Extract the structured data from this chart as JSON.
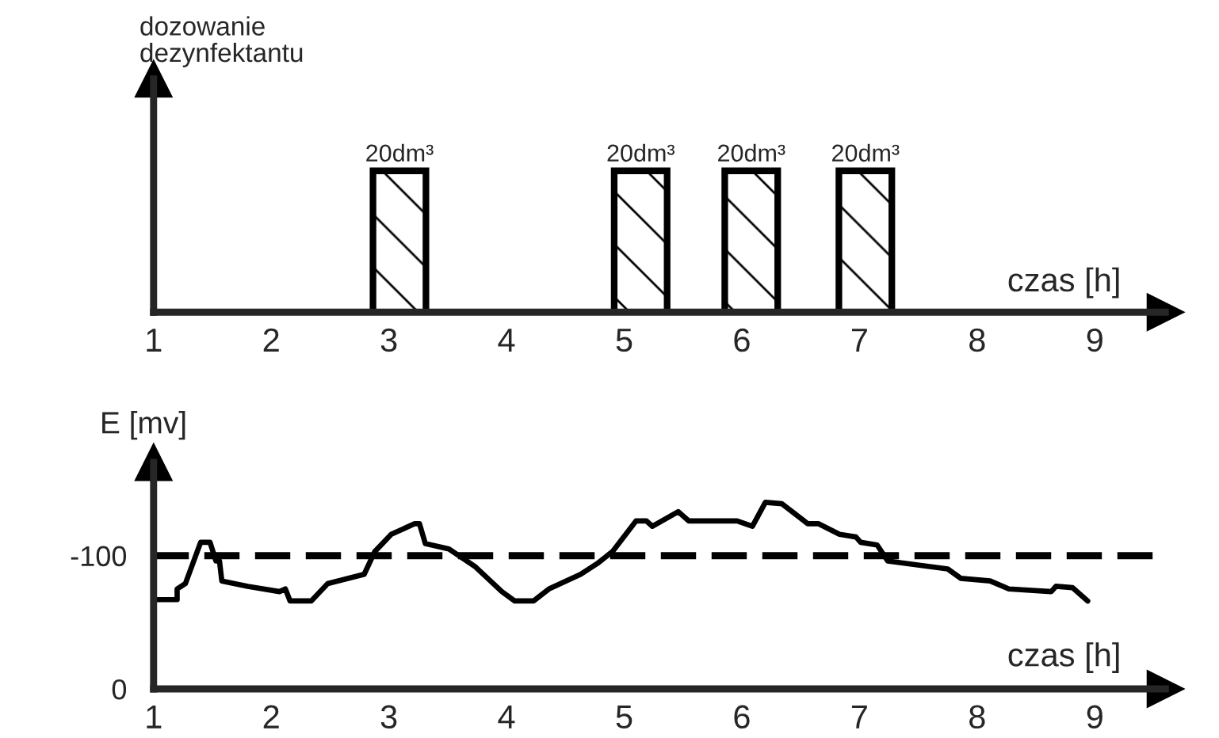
{
  "chart_data": [
    {
      "type": "bar",
      "xlabel": "czas [h]",
      "ylabel": "dozowanie\ndezynfektantu",
      "x": [
        3.09,
        5.14,
        6.08,
        7.05
      ],
      "values": [
        20,
        20,
        20,
        20
      ],
      "value_labels": [
        "20dm³",
        "20dm³",
        "20dm³",
        "20dm³"
      ],
      "color": "#000000",
      "xlim": [
        1,
        9.6
      ],
      "xticks": [
        1,
        2,
        3,
        4,
        5,
        6,
        7,
        8,
        9
      ],
      "ylim": [
        0,
        33
      ],
      "tick_labels": "x",
      "grid": false,
      "legend": false
    },
    {
      "type": "line",
      "xlabel": "czas [h]",
      "ylabel": "E [mv]",
      "series": [
        {
          "color": "#000000",
          "x": [
            1.0,
            1.2,
            1.2,
            1.27,
            1.4,
            1.48,
            1.53,
            1.56,
            1.58,
            1.8,
            2.07,
            2.12,
            2.16,
            2.34,
            2.48,
            2.79,
            2.88,
            3.02,
            3.22,
            3.26,
            3.31,
            3.51,
            3.73,
            3.96,
            4.07,
            4.23,
            4.36,
            4.63,
            4.77,
            4.9,
            5.1,
            5.19,
            5.24,
            5.46,
            5.55,
            5.96,
            6.09,
            6.2,
            6.34,
            6.56,
            6.65,
            6.83,
            6.97,
            7.01,
            7.15,
            7.24,
            7.75,
            7.86,
            8.11,
            8.27,
            8.63,
            8.67,
            8.81,
            8.94
          ],
          "values": [
            -67,
            -67,
            -75,
            -79,
            -110,
            -110,
            -96,
            -96,
            -81,
            -77,
            -73,
            -75,
            -66,
            -66,
            -79,
            -86,
            -103,
            -116,
            -124,
            -124,
            -109,
            -105,
            -92,
            -73,
            -66,
            -66,
            -75,
            -86,
            -94,
            -103,
            -126,
            -126,
            -122,
            -133,
            -126,
            -126,
            -122,
            -140,
            -139,
            -124,
            -124,
            -116,
            -114,
            -110,
            -108,
            -96,
            -90,
            -83,
            -81,
            -75,
            -73,
            -77,
            -76,
            -66
          ]
        }
      ],
      "xlim": [
        1,
        9.6
      ],
      "xticks": [
        1,
        2,
        3,
        4,
        5,
        6,
        7,
        8,
        9
      ],
      "ylim": [
        0,
        -170
      ],
      "yticks": [
        0,
        -100
      ],
      "ref_lines": [
        {
          "axis": "y",
          "value": -100,
          "line_style": "dashed",
          "color": "#000000"
        }
      ],
      "line_style": "solid",
      "marker": "none",
      "grid": false,
      "legend": false
    }
  ]
}
